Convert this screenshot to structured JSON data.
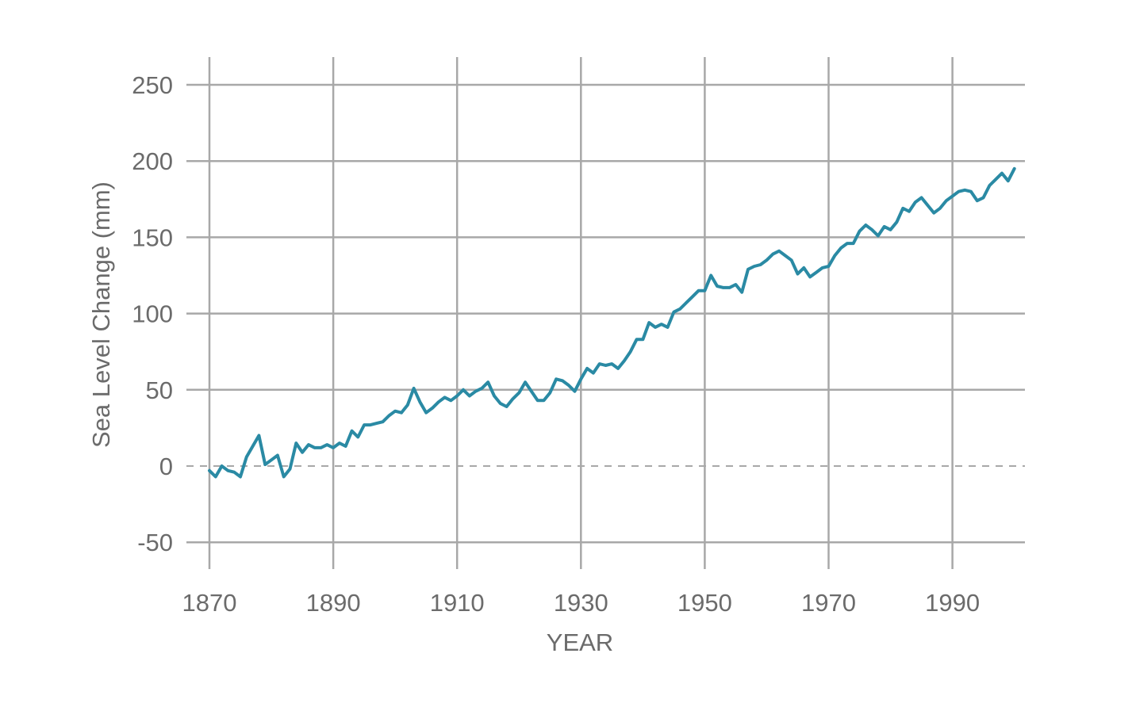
{
  "chart_data": {
    "type": "line",
    "title": "",
    "xlabel": "YEAR",
    "ylabel": "Sea Level Change (mm)",
    "xlim": [
      1870,
      2002
    ],
    "ylim": [
      -67,
      268
    ],
    "x_ticks": [
      1870,
      1890,
      1910,
      1930,
      1950,
      1970,
      1990
    ],
    "y_ticks": [
      -50,
      0,
      50,
      100,
      150,
      200,
      250
    ],
    "zero_line": "dashed",
    "grid": true,
    "line_color": "#2a8aa4",
    "series": [
      {
        "x": [
          1870,
          1871,
          1872,
          1873,
          1874,
          1875,
          1876,
          1877,
          1878,
          1879,
          1880,
          1881,
          1882,
          1883,
          1884,
          1885,
          1886,
          1887,
          1888,
          1889,
          1890,
          1891,
          1892,
          1893,
          1894,
          1895,
          1896,
          1897,
          1898,
          1899,
          1900,
          1901,
          1902,
          1903,
          1904,
          1905,
          1906,
          1907,
          1908,
          1909,
          1910,
          1911,
          1912,
          1913,
          1914,
          1915,
          1916,
          1917,
          1918,
          1919,
          1920,
          1921,
          1922,
          1923,
          1924,
          1925,
          1926,
          1927,
          1928,
          1929,
          1930,
          1931,
          1932,
          1933,
          1934,
          1935,
          1936,
          1937,
          1938,
          1939,
          1940,
          1941,
          1942,
          1943,
          1944,
          1945,
          1946,
          1947,
          1948,
          1949,
          1950,
          1951,
          1952,
          1953,
          1954,
          1955,
          1956,
          1957,
          1958,
          1959,
          1960,
          1961,
          1962,
          1963,
          1964,
          1965,
          1966,
          1967,
          1968,
          1969,
          1970,
          1971,
          1972,
          1973,
          1974,
          1975,
          1976,
          1977,
          1978,
          1979,
          1980,
          1981,
          1982,
          1983,
          1984,
          1985,
          1986,
          1987,
          1988,
          1989,
          1990,
          1991,
          1992,
          1993,
          1994,
          1995,
          1996,
          1997,
          1998,
          1999,
          2000
        ],
        "values": [
          -3,
          -7,
          0,
          -3,
          -4,
          -7,
          6,
          13,
          20,
          1,
          4,
          7,
          -7,
          -2,
          15,
          9,
          14,
          12,
          12,
          14,
          12,
          15,
          13,
          23,
          19,
          27,
          27,
          28,
          29,
          33,
          36,
          35,
          40,
          51,
          42,
          35,
          38,
          42,
          45,
          43,
          46,
          50,
          46,
          49,
          51,
          55,
          46,
          41,
          39,
          44,
          48,
          55,
          49,
          43,
          43,
          48,
          57,
          56,
          53,
          49,
          57,
          64,
          61,
          67,
          66,
          67,
          64,
          69,
          75,
          83,
          83,
          94,
          91,
          93,
          91,
          101,
          103,
          107,
          111,
          115,
          115,
          125,
          118,
          117,
          117,
          119,
          114,
          129,
          131,
          132,
          135,
          139,
          141,
          138,
          135,
          126,
          130,
          124,
          127,
          130,
          131,
          138,
          143,
          146,
          146,
          154,
          158,
          155,
          151,
          157,
          155,
          160,
          169,
          167,
          173,
          176,
          171,
          166,
          169,
          174,
          177,
          180,
          181,
          180,
          174,
          176,
          184,
          188,
          192,
          187,
          195
        ]
      }
    ]
  }
}
